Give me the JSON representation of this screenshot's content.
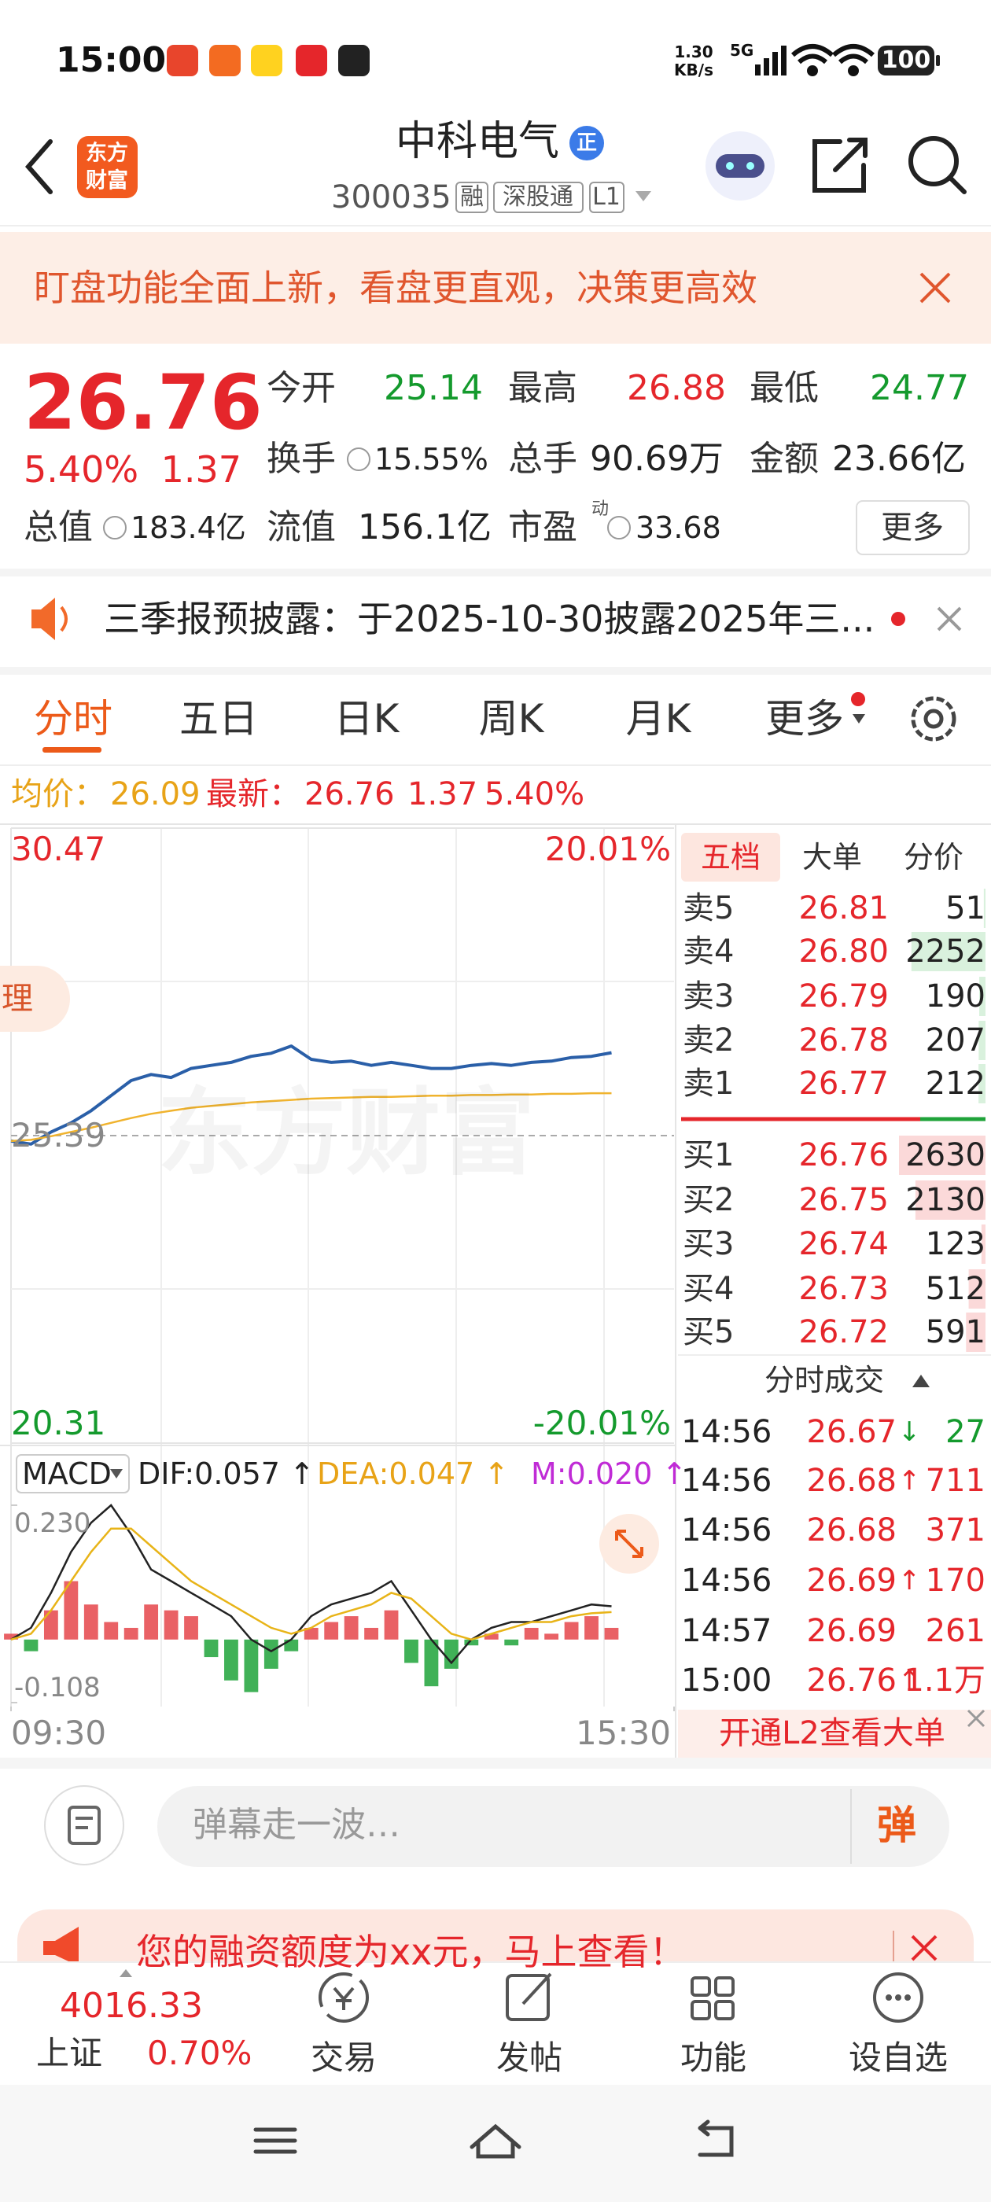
{
  "status": {
    "time": "15:00",
    "speed": [
      "1.30",
      "KB/s"
    ],
    "network": "5G",
    "battery": "100"
  },
  "header": {
    "logo": [
      "东方",
      "财富"
    ],
    "name": "中科电气",
    "badge": "正",
    "code": "300035",
    "tags": [
      "融",
      "深股通",
      "L1"
    ]
  },
  "banner": {
    "text": "盯盘功能全面上新，看盘更直观，决策更高效"
  },
  "quote": {
    "price": "26.76",
    "change_pct": "5.40%",
    "change": "1.37",
    "fields": [
      {
        "label": "今开",
        "value": "25.14"
      },
      {
        "label": "最高",
        "value": "26.88"
      },
      {
        "label": "最低",
        "value": "24.77"
      },
      {
        "label": "换手",
        "value": "15.55%"
      },
      {
        "label": "总手",
        "value": "90.69万"
      },
      {
        "label": "金额",
        "value": "23.66亿"
      },
      {
        "label": "总值",
        "value": "183.4亿"
      },
      {
        "label": "流值",
        "value": "156.1亿"
      },
      {
        "label": "市盈",
        "value": "33.68"
      }
    ],
    "pe_mark": "动",
    "more": "更多"
  },
  "notice": {
    "text": "三季报预披露：于2025-10-30披露2025年三..."
  },
  "tabs": [
    "分时",
    "五日",
    "日K",
    "周K",
    "月K",
    "更多"
  ],
  "info": {
    "avg_label": "均价：",
    "avg": "26.09",
    "last_label": "最新：",
    "last": "26.76",
    "change": "1.37",
    "change_pct": "5.40%"
  },
  "overlay": {
    "chip": "理",
    "watermark": "东方财富"
  },
  "chart_data": [
    {
      "type": "line",
      "x": [
        0,
        8,
        16,
        24,
        32,
        40,
        48,
        56,
        64,
        72,
        80,
        88,
        96,
        104,
        112,
        120,
        128,
        136,
        144,
        152,
        160,
        168,
        176,
        184,
        192,
        200,
        208,
        216,
        224,
        232,
        240
      ],
      "xlim": [
        0,
        265
      ],
      "xticks": [
        {
          "value": 0,
          "label": "09:30"
        },
        {
          "value": 265,
          "label": "15:30"
        }
      ],
      "ylim": [
        20.31,
        30.47
      ],
      "yticks": [
        30.47,
        25.39,
        20.31
      ],
      "y2lim": [
        -20.01,
        20.01
      ],
      "y2ticks": [
        {
          "value": 20.01,
          "label": "20.01%"
        },
        {
          "value": -20.01,
          "label": "-20.01%"
        }
      ],
      "series": [
        {
          "color": "#2a5fa8",
          "values": [
            25.3,
            25.25,
            25.45,
            25.6,
            25.8,
            26.05,
            26.3,
            26.4,
            26.35,
            26.5,
            26.55,
            26.6,
            26.7,
            26.75,
            26.87,
            26.65,
            26.6,
            26.62,
            26.55,
            26.6,
            26.55,
            26.5,
            26.5,
            26.55,
            26.58,
            26.55,
            26.6,
            26.62,
            26.68,
            26.7,
            26.76
          ]
        },
        {
          "color": "#f0b32e",
          "values": [
            25.3,
            25.32,
            25.38,
            25.45,
            25.52,
            25.6,
            25.68,
            25.75,
            25.8,
            25.85,
            25.88,
            25.91,
            25.94,
            25.96,
            25.98,
            26.0,
            26.01,
            26.02,
            26.03,
            26.03,
            26.04,
            26.05,
            26.05,
            26.06,
            26.06,
            26.07,
            26.07,
            26.08,
            26.08,
            26.09,
            26.09
          ]
        }
      ]
    },
    {
      "type": "macd",
      "indicator": "MACD",
      "labels": [
        "DIF:0.057 ↑",
        "DEA:0.047 ↑",
        "M:0.020 ↑"
      ],
      "x": [
        0,
        8,
        16,
        24,
        32,
        40,
        48,
        56,
        64,
        72,
        80,
        88,
        96,
        104,
        112,
        120,
        128,
        136,
        144,
        152,
        160,
        168,
        176,
        184,
        192,
        200,
        208,
        216,
        224,
        232,
        240
      ],
      "xlim": [
        0,
        265
      ],
      "ylim": [
        -0.108,
        0.23
      ],
      "yticks": [
        {
          "value": 0.23,
          "label": "0.230"
        },
        -0.108
      ],
      "up_color": "#e5454a",
      "down_color": "#1fa33a",
      "histogram": [
        0.01,
        -0.02,
        0.05,
        0.1,
        0.06,
        0.03,
        0.02,
        0.06,
        0.05,
        0.04,
        -0.03,
        -0.07,
        -0.09,
        -0.05,
        -0.02,
        0.02,
        0.03,
        0.04,
        0.02,
        0.05,
        -0.04,
        -0.08,
        -0.05,
        -0.01,
        0.01,
        -0.01,
        0.02,
        0.01,
        0.03,
        0.04,
        0.02
      ],
      "series": [
        {
          "color": "#222222",
          "values": [
            0.0,
            0.02,
            0.08,
            0.15,
            0.2,
            0.23,
            0.18,
            0.12,
            0.1,
            0.08,
            0.06,
            0.04,
            0.0,
            -0.02,
            0.0,
            0.04,
            0.06,
            0.07,
            0.08,
            0.1,
            0.05,
            0.0,
            -0.04,
            0.0,
            0.02,
            0.03,
            0.03,
            0.04,
            0.05,
            0.06,
            0.057
          ]
        },
        {
          "color": "#e8b418",
          "values": [
            0.0,
            0.01,
            0.05,
            0.1,
            0.15,
            0.19,
            0.19,
            0.16,
            0.13,
            0.1,
            0.08,
            0.06,
            0.04,
            0.02,
            0.01,
            0.02,
            0.04,
            0.05,
            0.06,
            0.08,
            0.07,
            0.04,
            0.01,
            0.0,
            0.01,
            0.02,
            0.03,
            0.03,
            0.04,
            0.045,
            0.047
          ]
        }
      ]
    }
  ],
  "order_book": {
    "tabs": [
      "五档",
      "大单",
      "分价"
    ],
    "asks": [
      {
        "label": "卖5",
        "price": "26.81",
        "volume": "51"
      },
      {
        "label": "卖4",
        "price": "26.80",
        "volume": "2252"
      },
      {
        "label": "卖3",
        "price": "26.79",
        "volume": "190"
      },
      {
        "label": "卖2",
        "price": "26.78",
        "volume": "207"
      },
      {
        "label": "卖1",
        "price": "26.77",
        "volume": "212"
      }
    ],
    "bids": [
      {
        "label": "买1",
        "price": "26.76",
        "volume": "2630"
      },
      {
        "label": "买2",
        "price": "26.75",
        "volume": "2130"
      },
      {
        "label": "买3",
        "price": "26.74",
        "volume": "123"
      },
      {
        "label": "买4",
        "price": "26.73",
        "volume": "512"
      },
      {
        "label": "买5",
        "price": "26.72",
        "volume": "591"
      }
    ],
    "trades_title": "分时成交",
    "trades": [
      {
        "time": "14:56",
        "price": "26.67",
        "arrow": "↓",
        "volume": "27"
      },
      {
        "time": "14:56",
        "price": "26.68",
        "arrow": "↑",
        "volume": "711"
      },
      {
        "time": "14:56",
        "price": "26.68",
        "volume": "371"
      },
      {
        "time": "14:56",
        "price": "26.69",
        "arrow": "↑",
        "volume": "170"
      },
      {
        "time": "14:57",
        "price": "26.69",
        "volume": "261"
      },
      {
        "time": "15:00",
        "price": "26.76",
        "arrow": "↑",
        "volume": "1.1万"
      }
    ],
    "l2_button": "开通L2查看大单"
  },
  "comment": {
    "placeholder": "弹幕走一波…",
    "button": "弹"
  },
  "promo": {
    "text": "您的融资额度为xx元，马上查看！"
  },
  "bottom_nav": {
    "index": {
      "value": "4016.33",
      "name": "上证",
      "change": "0.70%"
    },
    "items": [
      "交易",
      "发帖",
      "功能",
      "设自选"
    ]
  }
}
